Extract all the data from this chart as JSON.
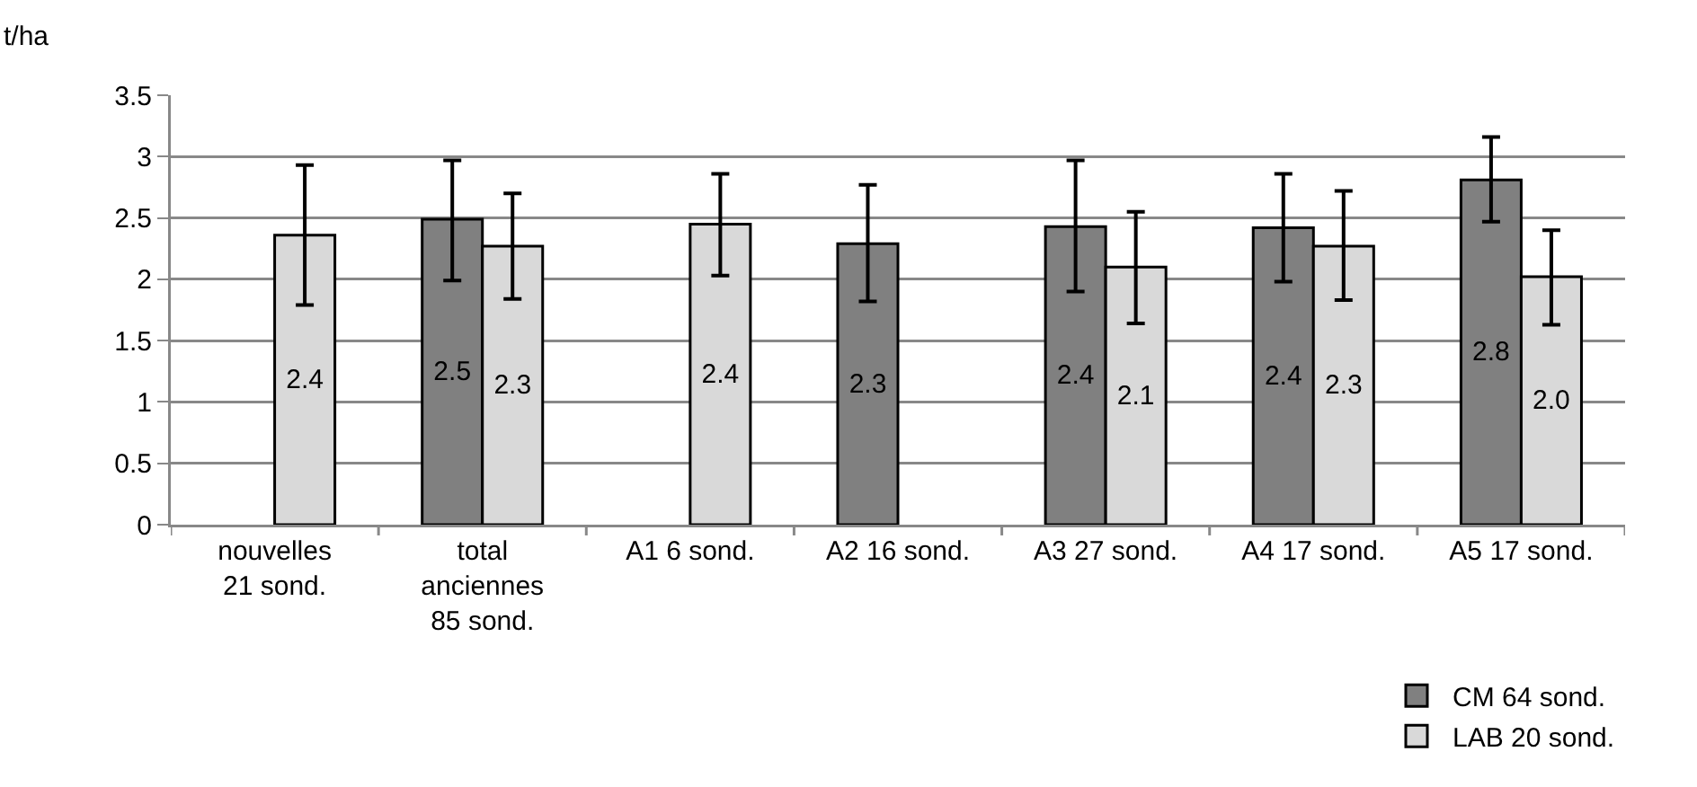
{
  "chart_data": {
    "type": "bar",
    "ylabel": "t/ha",
    "categories": [
      "nouvelles 21 sond.",
      "total anciennes 85 sond.",
      "A1 6 sond.",
      "A2 16 sond.",
      "A3 27 sond.",
      "A4 17 sond.",
      "A5 17 sond."
    ],
    "series": [
      {
        "name": "CM 64 sond.",
        "color": "#808080",
        "values": [
          null,
          2.49,
          null,
          2.29,
          2.43,
          2.42,
          2.81
        ],
        "value_labels": [
          null,
          "2.5",
          null,
          "2.3",
          "2.4",
          "2.4",
          "2.8"
        ],
        "errors": [
          null,
          [
            1.99,
            2.97
          ],
          null,
          [
            1.82,
            2.77
          ],
          [
            1.9,
            2.97
          ],
          [
            1.98,
            2.86
          ],
          [
            2.47,
            3.16
          ]
        ]
      },
      {
        "name": "LAB 20 sond.",
        "color": "#d9d9d9",
        "values": [
          2.36,
          2.27,
          2.45,
          null,
          2.1,
          2.27,
          2.02
        ],
        "value_labels": [
          "2.4",
          "2.3",
          "2.4",
          null,
          "2.1",
          "2.3",
          "2.0"
        ],
        "errors": [
          [
            1.79,
            2.93
          ],
          [
            1.84,
            2.7
          ],
          [
            2.03,
            2.86
          ],
          null,
          [
            1.64,
            2.55
          ],
          [
            1.83,
            2.72
          ],
          [
            1.63,
            2.4
          ]
        ]
      }
    ],
    "ylim": [
      0,
      3.5
    ],
    "yticks": [
      0,
      0.5,
      1,
      1.5,
      2,
      2.5,
      3,
      3.5
    ],
    "grid": "y",
    "legend": "bottom right"
  }
}
